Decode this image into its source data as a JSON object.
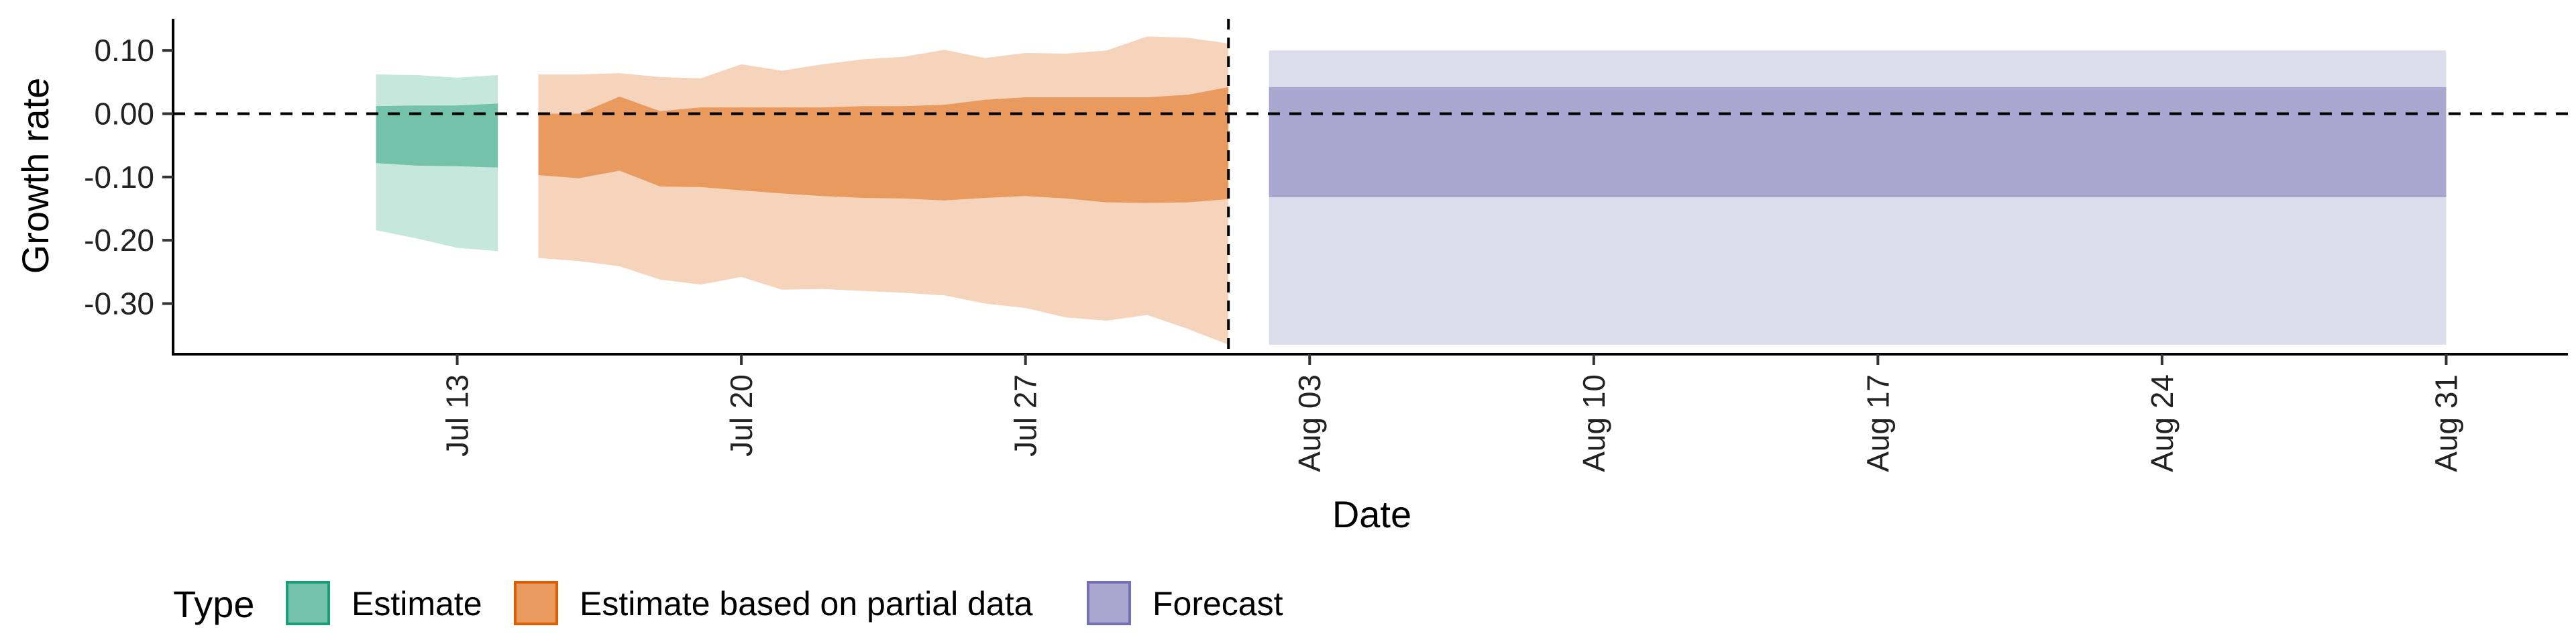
{
  "chart_data": {
    "type": "area",
    "xlabel": "Date",
    "ylabel": "Growth rate",
    "ylim": [
      -0.38,
      0.15
    ],
    "y_ticks": [
      0.1,
      0.0,
      -0.1,
      -0.2,
      -0.3
    ],
    "y_tick_labels": [
      "0.10",
      "0.00",
      "-0.10",
      "-0.20",
      "-0.30"
    ],
    "x_range": [
      "2020-07-06",
      "2020-09-03"
    ],
    "x_ticks": [
      "2020-07-13",
      "2020-07-20",
      "2020-07-27",
      "2020-08-03",
      "2020-08-10",
      "2020-08-17",
      "2020-08-24",
      "2020-08-31"
    ],
    "x_tick_labels": [
      "Jul 13",
      "Jul 20",
      "Jul 27",
      "Aug 03",
      "Aug 10",
      "Aug 17",
      "Aug 24",
      "Aug 31"
    ],
    "hline_y": 0.0,
    "vline_x": "2020-08-01",
    "grid": false,
    "legend": {
      "title": "Type",
      "position": "bottom",
      "items": [
        {
          "label": "Estimate",
          "fill": "#74c2a9",
          "stroke": "#1b9e77"
        },
        {
          "label": "Estimate based on partial data",
          "fill": "#e89a5f",
          "stroke": "#d95f02"
        },
        {
          "label": "Forecast",
          "fill": "#a9a6d0",
          "stroke": "#7570b3"
        }
      ]
    },
    "series": [
      {
        "name": "Estimate",
        "color_inner": "#74c2a9",
        "color_outer": "#c5e7dc",
        "x": [
          "2020-07-11",
          "2020-07-12",
          "2020-07-13",
          "2020-07-14"
        ],
        "outer_upper": [
          0.062,
          0.061,
          0.057,
          0.061
        ],
        "inner_upper": [
          0.012,
          0.013,
          0.013,
          0.016
        ],
        "inner_lower": [
          -0.078,
          -0.082,
          -0.083,
          -0.085
        ],
        "outer_lower": [
          -0.184,
          -0.197,
          -0.212,
          -0.217
        ]
      },
      {
        "name": "Estimate based on partial data",
        "color_inner": "#e89a5f",
        "color_outer": "#f6d4bc",
        "x": [
          "2020-07-15",
          "2020-07-16",
          "2020-07-17",
          "2020-07-18",
          "2020-07-19",
          "2020-07-20",
          "2020-07-21",
          "2020-07-22",
          "2020-07-23",
          "2020-07-24",
          "2020-07-25",
          "2020-07-26",
          "2020-07-27",
          "2020-07-28",
          "2020-07-29",
          "2020-07-30",
          "2020-07-31",
          "2020-08-01"
        ],
        "outer_upper": [
          0.062,
          0.062,
          0.064,
          0.058,
          0.056,
          0.078,
          0.068,
          0.078,
          0.086,
          0.09,
          0.101,
          0.088,
          0.096,
          0.095,
          0.1,
          0.122,
          0.12,
          0.111
        ],
        "inner_upper": [
          0.0,
          0.0,
          0.027,
          0.004,
          0.01,
          0.01,
          0.01,
          0.01,
          0.012,
          0.012,
          0.014,
          0.022,
          0.026,
          0.026,
          0.026,
          0.026,
          0.03,
          0.042
        ],
        "inner_lower": [
          -0.097,
          -0.102,
          -0.09,
          -0.115,
          -0.116,
          -0.121,
          -0.126,
          -0.13,
          -0.133,
          -0.134,
          -0.137,
          -0.133,
          -0.13,
          -0.134,
          -0.14,
          -0.141,
          -0.14,
          -0.135
        ],
        "outer_lower": [
          -0.228,
          -0.233,
          -0.241,
          -0.262,
          -0.27,
          -0.258,
          -0.278,
          -0.277,
          -0.28,
          -0.283,
          -0.287,
          -0.3,
          -0.307,
          -0.322,
          -0.327,
          -0.318,
          -0.34,
          -0.365
        ]
      },
      {
        "name": "Forecast",
        "color_inner": "#a9a6d0",
        "color_outer": "#dcdcec",
        "x": [
          "2020-08-02",
          "2020-08-31"
        ],
        "outer_upper": [
          0.1,
          0.1
        ],
        "inner_upper": [
          0.042,
          0.042
        ],
        "inner_lower": [
          -0.132,
          -0.132
        ],
        "outer_lower": [
          -0.365,
          -0.365
        ]
      }
    ]
  }
}
